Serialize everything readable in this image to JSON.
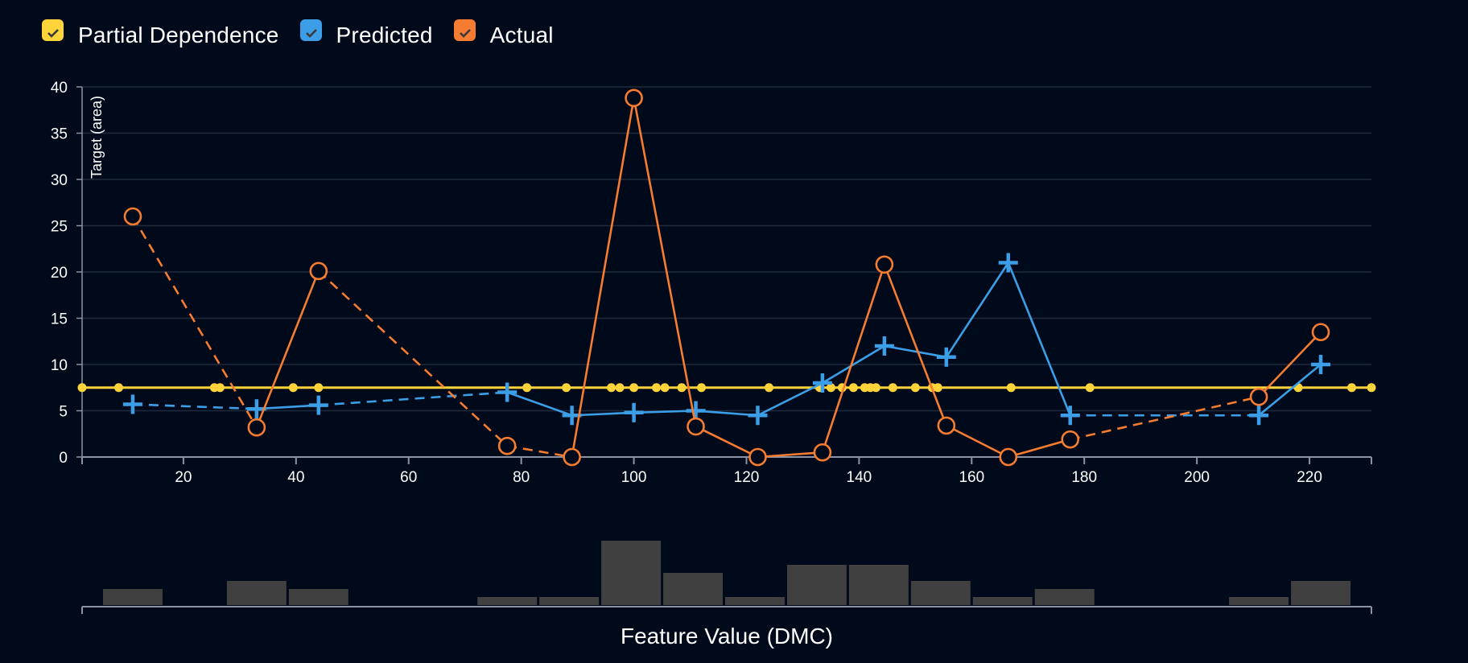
{
  "legend": [
    {
      "label": "Partial Dependence",
      "color": "#ffd43b",
      "icon": "checkbox-checked-icon"
    },
    {
      "label": "Predicted",
      "color": "#3b9ee6",
      "icon": "checkbox-checked-icon"
    },
    {
      "label": "Actual",
      "color": "#f57c30",
      "icon": "checkbox-checked-icon"
    }
  ],
  "chart_data": {
    "type": "line",
    "xlabel": "Feature Value (DMC)",
    "ylabel": "Target (area)",
    "xlim": [
      2,
      231
    ],
    "ylim": [
      0,
      40
    ],
    "xticks": [
      20,
      40,
      60,
      80,
      100,
      120,
      140,
      160,
      180,
      200,
      220
    ],
    "yticks": [
      0,
      5,
      10,
      15,
      20,
      25,
      30,
      35,
      40
    ],
    "grid": true,
    "legend_position": "top-left",
    "series": [
      {
        "name": "Partial Dependence",
        "color": "#ffd43b",
        "marker": "dot",
        "x": [
          2,
          8.5,
          25.5,
          26.5,
          39.5,
          44,
          81,
          88,
          96,
          97.5,
          100,
          104,
          105.5,
          108.5,
          112,
          124,
          133,
          135,
          137,
          139,
          141,
          142,
          143,
          146,
          150,
          153,
          154,
          167,
          181,
          218,
          227.5,
          231
        ],
        "y": [
          7.5,
          7.5,
          7.5,
          7.5,
          7.5,
          7.5,
          7.5,
          7.5,
          7.5,
          7.5,
          7.5,
          7.5,
          7.5,
          7.5,
          7.5,
          7.5,
          7.5,
          7.5,
          7.5,
          7.5,
          7.5,
          7.5,
          7.5,
          7.5,
          7.5,
          7.5,
          7.5,
          7.5,
          7.5,
          7.5,
          7.5,
          7.5
        ]
      },
      {
        "name": "Predicted",
        "color": "#3b9ee6",
        "marker": "plus",
        "x": [
          11,
          33,
          44,
          77.5,
          89,
          100,
          111,
          122,
          133.5,
          144.5,
          155.5,
          166.5,
          177.5,
          211,
          222
        ],
        "y": [
          5.7,
          5.2,
          5.6,
          7.0,
          4.5,
          4.8,
          5.0,
          4.5,
          8.0,
          12.0,
          10.8,
          21.0,
          4.5,
          4.5,
          10.0
        ],
        "dashed": [
          true,
          false,
          true,
          false,
          false,
          false,
          false,
          false,
          false,
          false,
          false,
          false,
          true,
          false
        ]
      },
      {
        "name": "Actual",
        "color": "#f57c30",
        "marker": "circle",
        "x": [
          11,
          33,
          44,
          77.5,
          89,
          100,
          111,
          122,
          133.5,
          144.5,
          155.5,
          166.5,
          177.5,
          211,
          222
        ],
        "y": [
          26.0,
          3.2,
          20.1,
          1.2,
          0.0,
          38.8,
          3.3,
          0.0,
          0.5,
          20.8,
          3.4,
          0.0,
          1.9,
          6.5,
          13.5
        ],
        "dashed": [
          true,
          false,
          true,
          true,
          false,
          false,
          false,
          false,
          false,
          false,
          false,
          false,
          true,
          false
        ]
      }
    ],
    "histogram": {
      "bins": [
        {
          "x0": 5.5,
          "x1": 16.5,
          "count": 2
        },
        {
          "x0": 27.5,
          "x1": 38.5,
          "count": 3
        },
        {
          "x0": 38.5,
          "x1": 49.5,
          "count": 2
        },
        {
          "x0": 72,
          "x1": 83,
          "count": 1
        },
        {
          "x0": 83,
          "x1": 94,
          "count": 1
        },
        {
          "x0": 94,
          "x1": 105,
          "count": 8
        },
        {
          "x0": 105,
          "x1": 116,
          "count": 4
        },
        {
          "x0": 116,
          "x1": 127,
          "count": 1
        },
        {
          "x0": 127,
          "x1": 138,
          "count": 5
        },
        {
          "x0": 138,
          "x1": 149,
          "count": 5
        },
        {
          "x0": 149,
          "x1": 160,
          "count": 3
        },
        {
          "x0": 160,
          "x1": 171,
          "count": 1
        },
        {
          "x0": 171,
          "x1": 182,
          "count": 2
        },
        {
          "x0": 205.5,
          "x1": 216.5,
          "count": 1
        },
        {
          "x0": 216.5,
          "x1": 227.5,
          "count": 3
        }
      ]
    }
  }
}
